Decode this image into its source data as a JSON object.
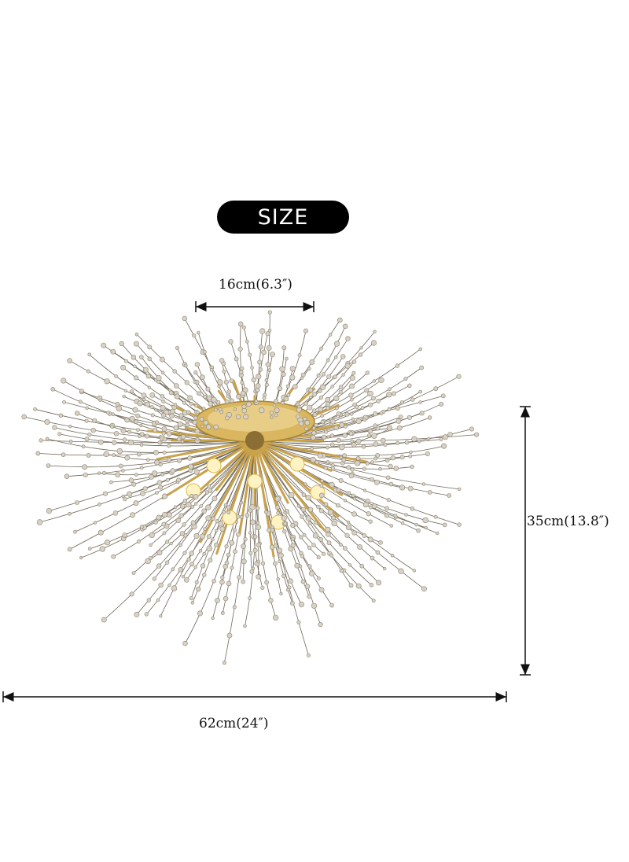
{
  "badge": {
    "label": "SIZE"
  },
  "dimensions": {
    "top_width": "16cm(6.3″)",
    "height": "35cm(13.8″)",
    "overall_width": "62cm(24″)"
  },
  "colors": {
    "badge_bg": "#000000",
    "badge_text": "#ffffff",
    "gold": "#c9a24a",
    "wire": "#6f6758",
    "crystal": "#d8d2c4"
  },
  "icons": {
    "product": "sputnik-crystal-chandelier"
  }
}
